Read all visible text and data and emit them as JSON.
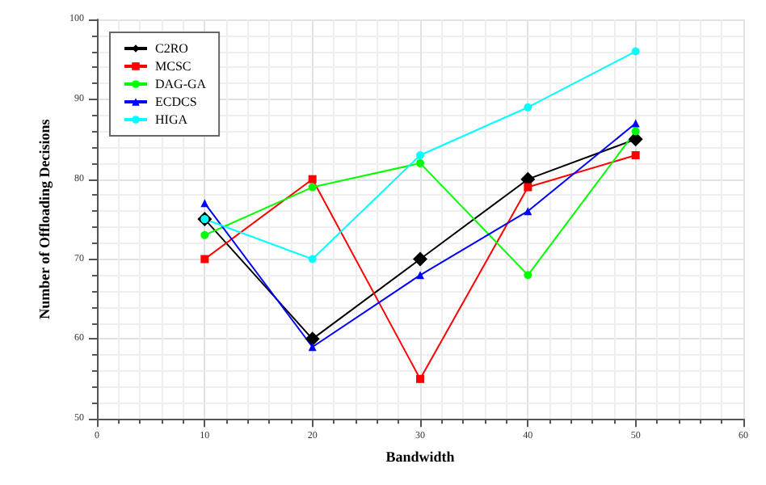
{
  "chart_data": {
    "type": "line",
    "xlabel": "Bandwidth",
    "ylabel": "Number of Offloading Decisions",
    "x": [
      10,
      20,
      30,
      40,
      50
    ],
    "xlim": [
      0,
      60
    ],
    "xticks": [
      0,
      10,
      20,
      30,
      40,
      50,
      60
    ],
    "ylim": [
      50,
      100
    ],
    "yticks": [
      50,
      60,
      70,
      80,
      90,
      100
    ],
    "grid": true,
    "legend": "top left",
    "series": [
      {
        "name": "C2RO",
        "color": "#000000",
        "marker": "diamond",
        "values": [
          75,
          60,
          70,
          80,
          85
        ]
      },
      {
        "name": "MCSC",
        "color": "#ff0000",
        "marker": "square",
        "values": [
          70,
          80,
          55,
          79,
          83
        ]
      },
      {
        "name": "DAG-GA",
        "color": "#00ff00",
        "marker": "circle",
        "values": [
          73,
          79,
          82,
          68,
          86
        ]
      },
      {
        "name": "ECDCS",
        "color": "#0000ff",
        "marker": "triangle",
        "values": [
          77,
          59,
          68,
          76,
          87
        ]
      },
      {
        "name": "HIGA",
        "color": "#00ffff",
        "marker": "circle",
        "values": [
          75,
          70,
          83,
          89,
          96
        ]
      }
    ]
  }
}
